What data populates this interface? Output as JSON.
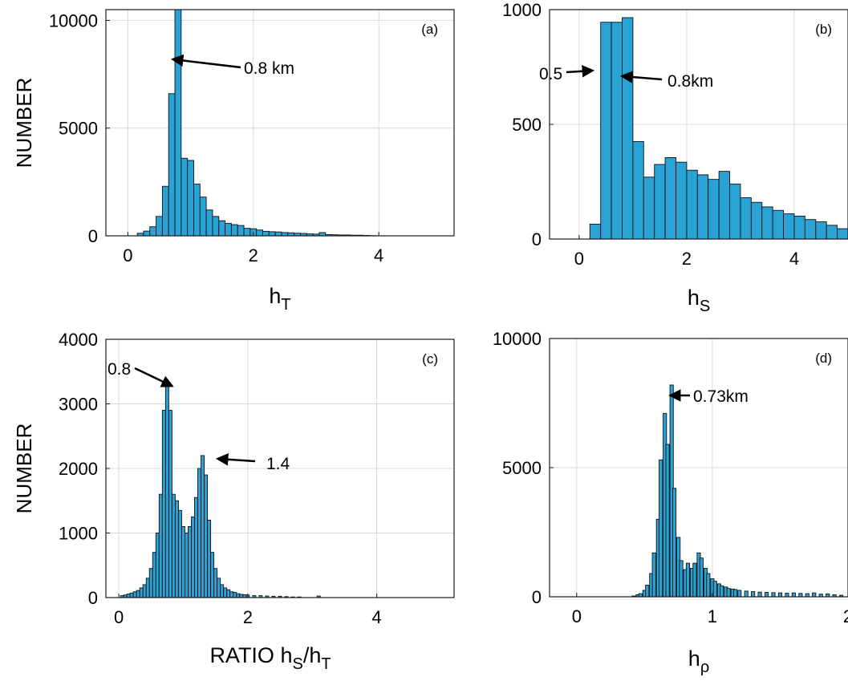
{
  "figure": {
    "colors": {
      "bar_fill": "#29a3d6",
      "bar_edge": "#111111",
      "grid": "#d9d9d9",
      "arrow": "#000000"
    }
  },
  "chart_data": [
    {
      "type": "bar",
      "panel": "(a)",
      "ylabel": "NUMBER",
      "xlabel": "h",
      "xlabel_sub": "T",
      "xlim": [
        -0.35,
        5.2
      ],
      "ylim": [
        0,
        10500
      ],
      "xticks": [
        0,
        2,
        4
      ],
      "yticks": [
        0,
        5000,
        10000
      ],
      "grid": true,
      "bin_width": 0.1,
      "x": [
        0.2,
        0.3,
        0.4,
        0.5,
        0.6,
        0.7,
        0.8,
        0.9,
        1.0,
        1.1,
        1.2,
        1.3,
        1.4,
        1.5,
        1.6,
        1.7,
        1.8,
        1.9,
        2.0,
        2.1,
        2.2,
        2.3,
        2.4,
        2.5,
        2.6,
        2.7,
        2.8,
        2.9,
        3.0,
        3.1,
        3.2,
        3.3,
        3.4,
        3.5,
        3.6,
        3.7,
        3.8,
        3.9
      ],
      "values": [
        120,
        220,
        420,
        900,
        2300,
        6600,
        11200,
        3600,
        3500,
        2400,
        1800,
        1200,
        900,
        700,
        580,
        520,
        480,
        350,
        330,
        270,
        210,
        190,
        180,
        150,
        140,
        120,
        110,
        90,
        80,
        150,
        60,
        50,
        40,
        40,
        30,
        30,
        20,
        10
      ],
      "annotations": [
        {
          "text": "0.8 km",
          "x": 0.8
        }
      ]
    },
    {
      "type": "bar",
      "panel": "(b)",
      "ylabel": "",
      "xlabel": "h",
      "xlabel_sub": "S",
      "xlim": [
        -0.55,
        5.0
      ],
      "ylim": [
        0,
        1000
      ],
      "xticks": [
        0,
        2,
        4
      ],
      "yticks": [
        0,
        500,
        1000
      ],
      "grid": true,
      "bin_width": 0.2,
      "x": [
        0.3,
        0.5,
        0.7,
        0.9,
        1.1,
        1.3,
        1.5,
        1.7,
        1.9,
        2.1,
        2.3,
        2.5,
        2.7,
        2.9,
        3.1,
        3.3,
        3.5,
        3.7,
        3.9,
        4.1,
        4.3,
        4.5,
        4.7,
        4.9
      ],
      "values": [
        65,
        945,
        945,
        965,
        425,
        270,
        325,
        355,
        335,
        300,
        280,
        260,
        295,
        240,
        180,
        160,
        140,
        125,
        110,
        100,
        85,
        75,
        60,
        45
      ],
      "annotations": [
        {
          "text": "0.5",
          "x": 0.5
        },
        {
          "text": "0.8km",
          "x": 0.8
        }
      ]
    },
    {
      "type": "bar",
      "panel": "(c)",
      "ylabel": "NUMBER",
      "xlabel": "RATIO h",
      "xlabel_sub": "S",
      "xlabel_mid": "/h",
      "xlabel_sub2": "T",
      "xlim": [
        -0.2,
        5.2
      ],
      "ylim": [
        0,
        4000
      ],
      "xticks": [
        0,
        2,
        4
      ],
      "yticks": [
        0,
        1000,
        2000,
        3000,
        4000
      ],
      "grid": true,
      "bin_width": 0.05,
      "x": [
        0.05,
        0.1,
        0.15,
        0.2,
        0.25,
        0.3,
        0.35,
        0.4,
        0.45,
        0.5,
        0.55,
        0.6,
        0.65,
        0.7,
        0.75,
        0.8,
        0.85,
        0.9,
        0.95,
        1.0,
        1.05,
        1.1,
        1.15,
        1.2,
        1.25,
        1.3,
        1.35,
        1.4,
        1.45,
        1.5,
        1.55,
        1.6,
        1.65,
        1.7,
        1.75,
        1.8,
        1.85,
        1.9,
        1.95,
        2.0,
        2.1,
        2.2,
        2.3,
        2.4,
        2.5,
        2.6,
        2.7,
        2.8,
        3.1
      ],
      "values": [
        30,
        40,
        55,
        70,
        90,
        110,
        150,
        200,
        300,
        450,
        700,
        1000,
        1600,
        2900,
        3300,
        2900,
        1600,
        1500,
        1350,
        1100,
        1000,
        1100,
        1250,
        1550,
        2000,
        2200,
        1900,
        1200,
        700,
        450,
        300,
        200,
        150,
        120,
        90,
        80,
        60,
        50,
        45,
        40,
        30,
        30,
        25,
        20,
        20,
        15,
        10,
        10,
        25
      ],
      "annotations": [
        {
          "text": "0.8",
          "x": 0.8
        },
        {
          "text": "1.4",
          "x": 1.4
        }
      ]
    },
    {
      "type": "bar",
      "panel": "(d)",
      "ylabel": "",
      "xlabel": "h",
      "xlabel_sub": "ρ",
      "xlim": [
        -0.2,
        2.0
      ],
      "ylim": [
        0,
        10000
      ],
      "xticks": [
        0,
        1,
        2
      ],
      "yticks": [
        0,
        5000,
        10000
      ],
      "grid": true,
      "bin_width": 0.025,
      "x": [
        0.42,
        0.45,
        0.47,
        0.5,
        0.52,
        0.55,
        0.57,
        0.6,
        0.62,
        0.65,
        0.67,
        0.7,
        0.72,
        0.75,
        0.77,
        0.8,
        0.82,
        0.85,
        0.87,
        0.9,
        0.92,
        0.95,
        0.97,
        1.0,
        1.02,
        1.05,
        1.07,
        1.1,
        1.12,
        1.15,
        1.17,
        1.2,
        1.25,
        1.3,
        1.35,
        1.4,
        1.45,
        1.5,
        1.55,
        1.6,
        1.65,
        1.7,
        1.75,
        1.8,
        1.85,
        1.9,
        1.95
      ],
      "values": [
        30,
        80,
        120,
        250,
        450,
        900,
        1700,
        3000,
        5300,
        7100,
        5900,
        8200,
        4200,
        2300,
        1400,
        1050,
        1300,
        1100,
        1300,
        1700,
        1500,
        1100,
        900,
        700,
        600,
        500,
        420,
        380,
        320,
        300,
        280,
        250,
        220,
        200,
        180,
        170,
        160,
        150,
        140,
        150,
        130,
        120,
        150,
        100,
        110,
        80,
        60
      ],
      "annotations": [
        {
          "text": "0.73km",
          "x": 0.73
        }
      ]
    }
  ]
}
